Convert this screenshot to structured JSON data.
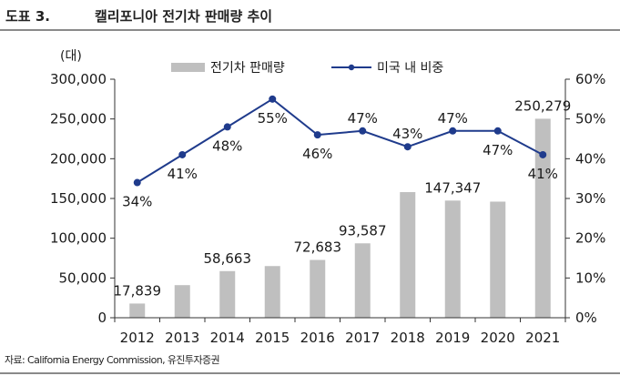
{
  "figure_label": "도표 3.",
  "figure_title": "캘리포니아 전기차 판매량 추이",
  "source": "자료: California Energy Commission, 유진투자증권",
  "colors": {
    "bar": "#bfbfbf",
    "line": "#1f3b8c",
    "axis": "#333333"
  },
  "chart_data": {
    "type": "bar+line",
    "title": "캘리포니아 전기차 판매량 추이",
    "categories": [
      "2012",
      "2013",
      "2014",
      "2015",
      "2016",
      "2017",
      "2018",
      "2019",
      "2020",
      "2021"
    ],
    "y_unit_label": "(대)",
    "ylim": [
      0,
      300000
    ],
    "y2lim": [
      0,
      60
    ],
    "y_ticks": [
      0,
      50000,
      100000,
      150000,
      200000,
      250000,
      300000
    ],
    "y_tick_labels": [
      "0",
      "50,000",
      "100,000",
      "150,000",
      "200,000",
      "250,000",
      "300,000"
    ],
    "y2_ticks": [
      0,
      10,
      20,
      30,
      40,
      50,
      60
    ],
    "y2_tick_labels": [
      "0%",
      "10%",
      "20%",
      "30%",
      "40%",
      "50%",
      "60%"
    ],
    "series": [
      {
        "name": "전기차 판매량",
        "type": "bar",
        "axis": "left",
        "values": [
          17839,
          41000,
          58663,
          65000,
          72683,
          93587,
          158000,
          147347,
          146000,
          250279
        ],
        "labels": [
          "17,839",
          "",
          "58,663",
          "",
          "72,683",
          "93,587",
          "",
          "147,347",
          "",
          "250,279"
        ]
      },
      {
        "name": "미국 내 비중",
        "type": "line",
        "axis": "right",
        "values": [
          34,
          41,
          48,
          55,
          46,
          47,
          43,
          47,
          47,
          41
        ],
        "labels": [
          "34%",
          "41%",
          "48%",
          "55%",
          "46%",
          "47%",
          "43%",
          "47%",
          "47%",
          "41%"
        ]
      }
    ],
    "legend_position": "top-center"
  }
}
